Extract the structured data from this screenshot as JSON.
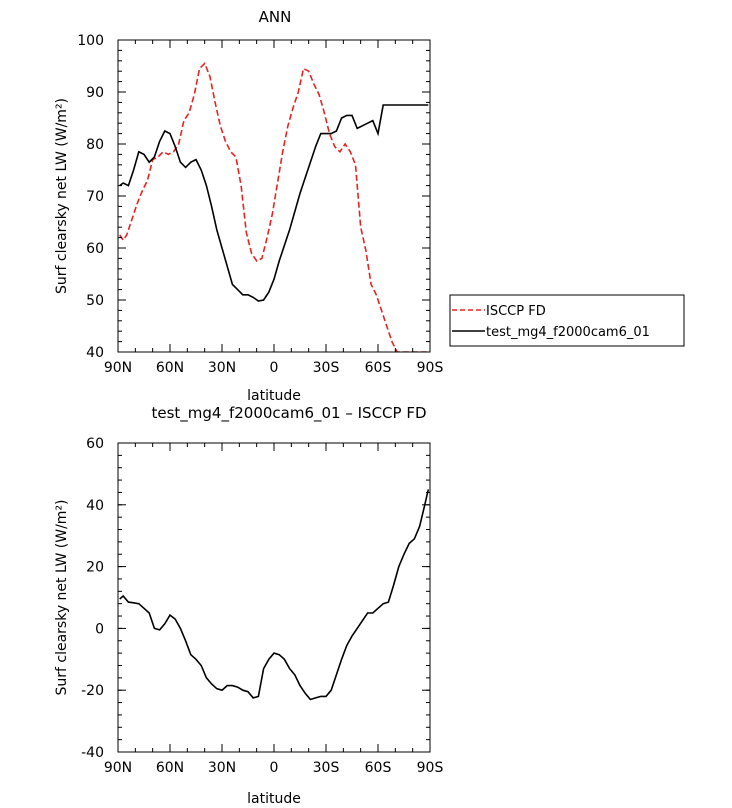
{
  "chart_data": [
    {
      "type": "line",
      "title": "ANN",
      "xlabel": "latitude",
      "ylabel": "Surf clearsky net LW (W/m²)",
      "xlim": [
        -90,
        90
      ],
      "ylim": [
        40,
        100
      ],
      "x_ticks": [
        -90,
        -60,
        -30,
        0,
        30,
        60,
        90
      ],
      "x_tick_labels": [
        "90N",
        "60N",
        "30N",
        "0",
        "30S",
        "60S",
        "90S"
      ],
      "y_ticks": [
        40,
        50,
        60,
        70,
        80,
        90,
        100
      ],
      "y_tick_labels": [
        "40",
        "50",
        "60",
        "70",
        "80",
        "90",
        "100"
      ],
      "grid": false,
      "legend_position": "right",
      "series": [
        {
          "name": "ISCCP FD",
          "color": "#e8231f",
          "dash": "dashed",
          "x": [
            -89,
            -87,
            -85,
            -82,
            -79,
            -76,
            -73,
            -70,
            -67,
            -64,
            -61,
            -58,
            -55,
            -52,
            -49,
            -46,
            -43,
            -40,
            -37,
            -34,
            -31,
            -28,
            -25,
            -22,
            -19,
            -16,
            -13,
            -10,
            -7,
            -4,
            -1,
            2,
            5,
            8,
            11,
            14,
            17,
            20,
            23,
            26,
            29,
            32,
            35,
            38,
            41,
            44,
            47,
            50,
            53,
            56,
            59,
            62,
            65,
            68,
            71,
            74,
            77,
            80,
            83,
            86,
            89
          ],
          "y": [
            62.5,
            61.5,
            62.5,
            65.5,
            68.5,
            71,
            73,
            77,
            77.5,
            78.5,
            78,
            78.5,
            80,
            84.5,
            86,
            89.5,
            94.5,
            95.5,
            93,
            88,
            83.5,
            80.5,
            78.5,
            77.5,
            72,
            63,
            59,
            57.5,
            58,
            62,
            66.5,
            72.5,
            78.5,
            83.5,
            87,
            90,
            94.5,
            94,
            91.5,
            89.5,
            86,
            82,
            79.5,
            78.5,
            80,
            78.5,
            76,
            64,
            59.5,
            53,
            51,
            48,
            45,
            42,
            40,
            40,
            40,
            40,
            40,
            40,
            40
          ]
        },
        {
          "name": "test_mg4_f2000cam6_01",
          "color": "#000000",
          "dash": "solid",
          "x": [
            -89,
            -87,
            -84,
            -81,
            -78,
            -75,
            -72,
            -69,
            -66,
            -63,
            -60,
            -57,
            -54,
            -51,
            -48,
            -45,
            -42,
            -39,
            -36,
            -33,
            -30,
            -27,
            -24,
            -21,
            -18,
            -15,
            -12,
            -9,
            -6,
            -3,
            0,
            3,
            6,
            9,
            12,
            15,
            18,
            21,
            24,
            27,
            30,
            33,
            36,
            39,
            42,
            45,
            48,
            51,
            54,
            57,
            60,
            63,
            66,
            69,
            72,
            75,
            78,
            81,
            84,
            87,
            89
          ],
          "y": [
            72,
            72.5,
            72,
            75,
            78.5,
            78,
            76.5,
            77.5,
            80.5,
            82.5,
            82,
            79.5,
            76.5,
            75.5,
            76.5,
            77,
            75,
            72,
            68,
            63.5,
            60,
            56.5,
            53,
            52,
            51,
            51,
            50.5,
            49.8,
            50,
            51.5,
            54,
            57.5,
            60.5,
            63.5,
            67,
            70.5,
            73.5,
            76.5,
            79.5,
            82,
            82,
            82,
            82.5,
            85,
            85.5,
            85.5,
            83,
            83.5,
            84,
            84.5,
            82,
            87.5,
            87.5,
            87.5,
            87.5,
            87.5,
            87.5,
            87.5,
            87.5,
            87.5,
            87.5
          ]
        }
      ]
    },
    {
      "type": "line",
      "title": "test_mg4_f2000cam6_01 – ISCCP FD",
      "xlabel": "latitude",
      "ylabel": "Surf clearsky net LW (W/m²)",
      "xlim": [
        -90,
        90
      ],
      "ylim": [
        -40,
        60
      ],
      "x_ticks": [
        -90,
        -60,
        -30,
        0,
        30,
        60,
        90
      ],
      "x_tick_labels": [
        "90N",
        "60N",
        "30N",
        "0",
        "30S",
        "60S",
        "90S"
      ],
      "y_ticks": [
        -40,
        -20,
        0,
        20,
        40,
        60
      ],
      "y_tick_labels": [
        "-40",
        "-20",
        "0",
        "20",
        "40",
        "60"
      ],
      "grid": false,
      "series": [
        {
          "color": "#000000",
          "dash": "solid",
          "x": [
            -89,
            -87,
            -84,
            -81,
            -78,
            -75,
            -72,
            -69,
            -66,
            -63,
            -60,
            -57,
            -54,
            -51,
            -48,
            -45,
            -42,
            -39,
            -36,
            -33,
            -30,
            -27,
            -24,
            -21,
            -18,
            -15,
            -12,
            -9,
            -6,
            -3,
            0,
            3,
            6,
            9,
            12,
            15,
            18,
            21,
            24,
            27,
            30,
            33,
            36,
            39,
            42,
            45,
            48,
            51,
            54,
            57,
            60,
            63,
            66,
            69,
            72,
            75,
            78,
            81,
            84,
            87,
            89
          ],
          "y": [
            9.5,
            10.5,
            8.5,
            8.3,
            8,
            6.5,
            5,
            0,
            -0.5,
            1.5,
            4.3,
            3,
            0,
            -4,
            -8.5,
            -10,
            -12,
            -16,
            -18,
            -19.5,
            -20,
            -18.5,
            -18.5,
            -19,
            -20,
            -20.5,
            -22.5,
            -22,
            -13,
            -10,
            -8,
            -8.5,
            -10,
            -13,
            -15,
            -18.5,
            -21,
            -23,
            -22.5,
            -22,
            -22,
            -20,
            -15,
            -10,
            -5.5,
            -2.5,
            0,
            2.5,
            5,
            5,
            6.5,
            8,
            8.5,
            14,
            20,
            24,
            27.5,
            29,
            33,
            40,
            45
          ]
        }
      ]
    }
  ],
  "legend": {
    "items": [
      {
        "label": "ISCCP FD",
        "color": "#e8231f",
        "dash": "dashed"
      },
      {
        "label": "test_mg4_f2000cam6_01",
        "color": "#000000",
        "dash": "solid"
      }
    ]
  }
}
